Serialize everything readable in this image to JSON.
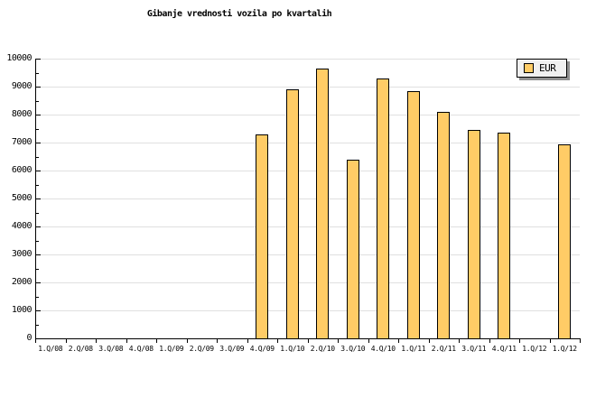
{
  "title": "Gibanje vrednosti vozila po kvartalih",
  "legend": {
    "label": "EUR"
  },
  "colors": {
    "bar_fill": "#FFCC66",
    "bar_border": "#000000",
    "gridline": "#E0E0E0",
    "axis": "#000000",
    "legend_bg": "#F0F0F0",
    "legend_shadow": "#8F8F8F",
    "background": "#FFFFFF",
    "text": "#000000"
  },
  "chart_data": {
    "type": "bar",
    "title": "Gibanje vrednosti vozila po kvartalih",
    "series_name": "EUR",
    "categories": [
      "1.Q/08",
      "2.Q/08",
      "3.Q/08",
      "4.Q/08",
      "1.Q/09",
      "2.Q/09",
      "3.Q/09",
      "4.Q/09",
      "1.Q/10",
      "2.Q/10",
      "3.Q/10",
      "4.Q/10",
      "1.Q/11",
      "2.Q/11",
      "3.Q/11",
      "4.Q/11",
      "1.Q/12",
      "1.Q/12"
    ],
    "values": [
      null,
      null,
      null,
      null,
      null,
      null,
      null,
      7300,
      8900,
      9650,
      6400,
      9300,
      8850,
      8100,
      7450,
      7350,
      null,
      6950
    ],
    "ylim": [
      0,
      10000
    ],
    "ytick_labels": [
      "0",
      "1000",
      "2000",
      "3000",
      "4000",
      "5000",
      "6000",
      "7000",
      "8000",
      "9000",
      "10000"
    ],
    "ytick_interval": 1000,
    "yminor_interval": 500,
    "grid": "horizontal-major",
    "legend_position": "top-right"
  }
}
